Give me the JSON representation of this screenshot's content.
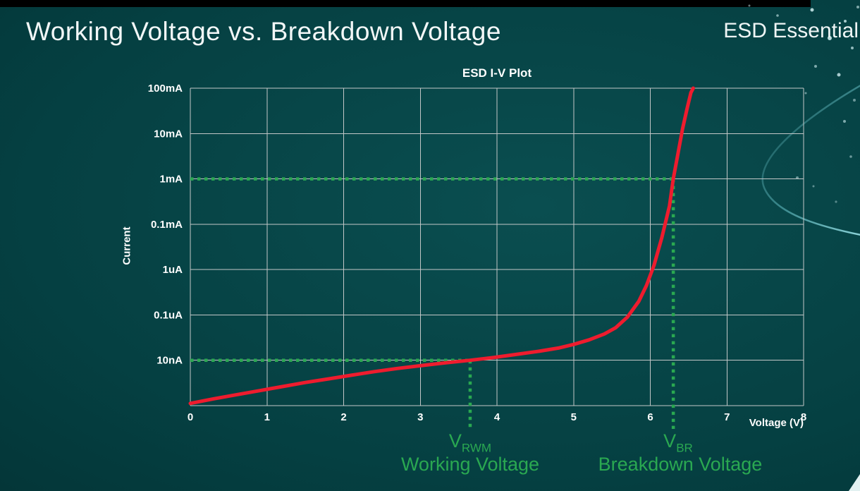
{
  "slide": {
    "title": "Working Voltage vs. Breakdown Voltage",
    "brand": "ESD Essential"
  },
  "colors": {
    "background_teal": "#054042",
    "top_bar_black": "#000000",
    "grid": "#c3c7c7",
    "curve_red": "#ee1c2e",
    "annotation_green": "#2aa851",
    "text_white": "#ffffff",
    "swoosh_teal": "#7fd4da"
  },
  "chart_data": {
    "type": "line",
    "title": "ESD I-V Plot",
    "xlabel": "Voltage (V)",
    "ylabel": "Current",
    "xlim": [
      0,
      8
    ],
    "x_ticks": [
      "0",
      "1",
      "2",
      "3",
      "4",
      "5",
      "6",
      "7",
      "8"
    ],
    "y_ticks": [
      "100mA",
      "10mA",
      "1mA",
      "0.1mA",
      "1uA",
      "0.1uA",
      "10nA"
    ],
    "grid": true,
    "y_scale": "log (one labeled decade per gridline, top gridline = 100mA)",
    "series": [
      {
        "name": "ESD device I-V curve",
        "color": "#ee1c2e",
        "encoding": "[voltage_V, gridline_rows_below_100mA_line]",
        "points": [
          [
            0,
            6.95
          ],
          [
            0.3,
            6.85
          ],
          [
            0.6,
            6.76
          ],
          [
            0.9,
            6.67
          ],
          [
            1.2,
            6.58
          ],
          [
            1.5,
            6.49
          ],
          [
            1.8,
            6.41
          ],
          [
            2.1,
            6.33
          ],
          [
            2.4,
            6.25
          ],
          [
            2.7,
            6.18
          ],
          [
            3,
            6.12
          ],
          [
            3.3,
            6.06
          ],
          [
            3.65,
            6
          ],
          [
            3.95,
            5.94
          ],
          [
            4.25,
            5.87
          ],
          [
            4.55,
            5.8
          ],
          [
            4.8,
            5.73
          ],
          [
            5,
            5.65
          ],
          [
            5.2,
            5.55
          ],
          [
            5.4,
            5.42
          ],
          [
            5.55,
            5.28
          ],
          [
            5.7,
            5.05
          ],
          [
            5.85,
            4.7
          ],
          [
            5.95,
            4.35
          ],
          [
            6.05,
            3.9
          ],
          [
            6.15,
            3.3
          ],
          [
            6.25,
            2.6
          ],
          [
            6.3,
            2
          ],
          [
            6.36,
            1.45
          ],
          [
            6.42,
            0.9
          ],
          [
            6.48,
            0.45
          ],
          [
            6.53,
            0.1
          ],
          [
            6.56,
            0
          ]
        ]
      }
    ],
    "annotations": {
      "working": {
        "symbol": "V",
        "subscript": "RWM",
        "caption": "Working Voltage",
        "voltage": 3.65,
        "row": 6,
        "at_current": "10nA"
      },
      "breakdown": {
        "symbol": "V",
        "subscript": "BR",
        "caption": "Breakdown Voltage",
        "voltage": 6.3,
        "row": 2,
        "at_current": "1mA"
      }
    }
  }
}
